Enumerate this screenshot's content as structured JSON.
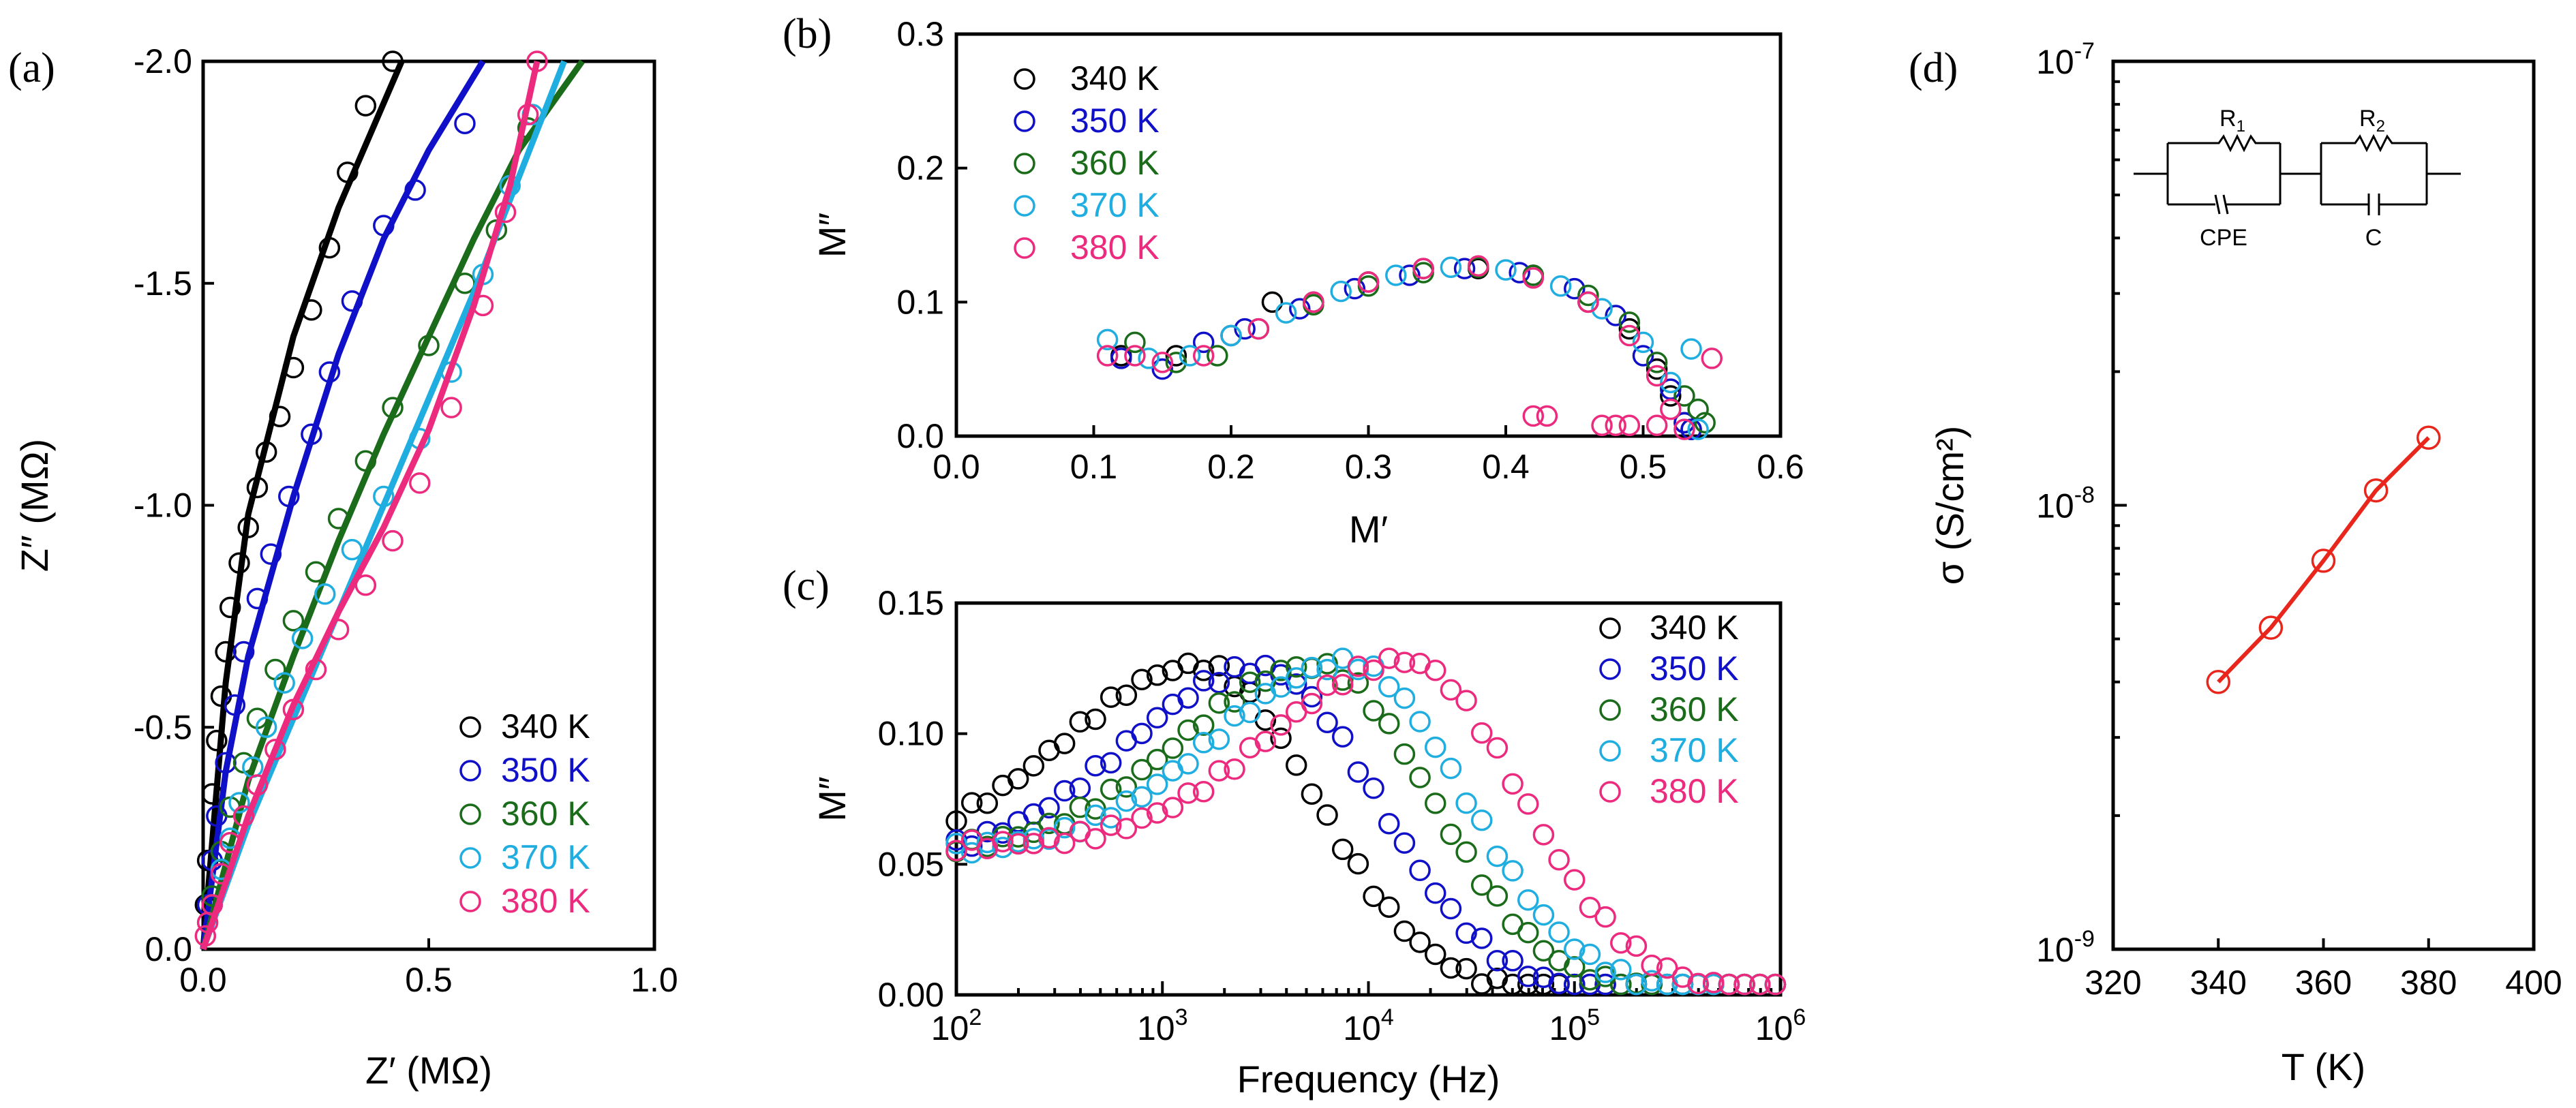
{
  "panels": {
    "a": {
      "label": "(a)"
    },
    "b": {
      "label": "(b)"
    },
    "c": {
      "label": "(c)"
    },
    "d": {
      "label": "(d)"
    }
  },
  "chart_data": [
    {
      "id": "a",
      "type": "scatter",
      "title": "",
      "xlabel": "Z′ (MΩ)",
      "ylabel": "Z″ (MΩ)",
      "xlim": [
        0,
        1.0
      ],
      "ylim": [
        0,
        -2.0
      ],
      "xticks": [
        "0.0",
        "0.5",
        "1.0"
      ],
      "yticks": [
        "0.0",
        "-0.5",
        "-1.0",
        "-1.5",
        "-2.0"
      ],
      "legend": "bottom-right",
      "series": [
        {
          "name": "340 K",
          "color": "#000000",
          "x": [
            0.005,
            0.01,
            0.02,
            0.03,
            0.04,
            0.05,
            0.06,
            0.08,
            0.1,
            0.12,
            0.14,
            0.17,
            0.2,
            0.24,
            0.28,
            0.32,
            0.36,
            0.42
          ],
          "y": [
            -0.1,
            -0.2,
            -0.35,
            -0.47,
            -0.57,
            -0.67,
            -0.77,
            -0.87,
            -0.95,
            -1.04,
            -1.12,
            -1.2,
            -1.31,
            -1.44,
            -1.58,
            -1.75,
            -1.9,
            -2.0
          ],
          "fit_x": [
            0,
            0.05,
            0.1,
            0.2,
            0.3,
            0.44
          ],
          "fit_y": [
            0,
            -0.6,
            -0.98,
            -1.38,
            -1.67,
            -2.0
          ]
        },
        {
          "name": "350 K",
          "color": "#1010c8",
          "x": [
            0.01,
            0.02,
            0.03,
            0.05,
            0.07,
            0.09,
            0.12,
            0.15,
            0.19,
            0.24,
            0.28,
            0.33,
            0.4,
            0.47,
            0.58
          ],
          "y": [
            -0.1,
            -0.2,
            -0.3,
            -0.42,
            -0.55,
            -0.67,
            -0.79,
            -0.89,
            -1.02,
            -1.16,
            -1.3,
            -1.46,
            -1.63,
            -1.71,
            -1.86
          ],
          "fit_x": [
            0,
            0.05,
            0.1,
            0.2,
            0.3,
            0.4,
            0.5,
            0.62
          ],
          "fit_y": [
            0,
            -0.4,
            -0.66,
            -1.02,
            -1.34,
            -1.6,
            -1.8,
            -2.0
          ]
        },
        {
          "name": "360 K",
          "color": "#1a6b1a",
          "x": [
            0.02,
            0.04,
            0.06,
            0.09,
            0.12,
            0.16,
            0.2,
            0.25,
            0.3,
            0.36,
            0.42,
            0.5,
            0.58,
            0.65,
            0.72
          ],
          "y": [
            -0.12,
            -0.22,
            -0.32,
            -0.42,
            -0.52,
            -0.63,
            -0.74,
            -0.85,
            -0.97,
            -1.1,
            -1.22,
            -1.36,
            -1.5,
            -1.62,
            -1.85
          ],
          "fit_x": [
            0,
            0.1,
            0.2,
            0.3,
            0.4,
            0.5,
            0.6,
            0.7,
            0.84
          ],
          "fit_y": [
            0,
            -0.38,
            -0.66,
            -0.92,
            -1.16,
            -1.38,
            -1.6,
            -1.8,
            -2.0
          ]
        },
        {
          "name": "370 K",
          "color": "#20aee0",
          "x": [
            0.02,
            0.04,
            0.06,
            0.08,
            0.11,
            0.14,
            0.18,
            0.22,
            0.27,
            0.33,
            0.4,
            0.48,
            0.55,
            0.62,
            0.68,
            0.73
          ],
          "y": [
            -0.1,
            -0.18,
            -0.25,
            -0.33,
            -0.41,
            -0.5,
            -0.6,
            -0.7,
            -0.8,
            -0.9,
            -1.02,
            -1.15,
            -1.3,
            -1.52,
            -1.72,
            -1.88
          ],
          "fit_x": [
            0,
            0.1,
            0.2,
            0.3,
            0.4,
            0.5,
            0.6,
            0.7,
            0.8
          ],
          "fit_y": [
            0,
            -0.28,
            -0.52,
            -0.76,
            -1.0,
            -1.24,
            -1.48,
            -1.74,
            -2.0
          ]
        },
        {
          "name": "380 K",
          "color": "#ec2a7e",
          "x": [
            0.005,
            0.01,
            0.02,
            0.04,
            0.06,
            0.09,
            0.12,
            0.16,
            0.2,
            0.25,
            0.3,
            0.36,
            0.42,
            0.48,
            0.55,
            0.62,
            0.67,
            0.72,
            0.74
          ],
          "y": [
            -0.03,
            -0.06,
            -0.1,
            -0.17,
            -0.24,
            -0.3,
            -0.37,
            -0.45,
            -0.54,
            -0.63,
            -0.72,
            -0.82,
            -0.92,
            -1.05,
            -1.22,
            -1.45,
            -1.66,
            -1.88,
            -2.0
          ],
          "fit_x": [
            0,
            0.1,
            0.2,
            0.3,
            0.4,
            0.5,
            0.6,
            0.68,
            0.74
          ],
          "fit_y": [
            0,
            -0.3,
            -0.55,
            -0.76,
            -0.95,
            -1.17,
            -1.45,
            -1.72,
            -2.0
          ]
        }
      ]
    },
    {
      "id": "b",
      "type": "scatter",
      "title": "",
      "xlabel": "M′",
      "ylabel": "M″",
      "xlim": [
        0,
        0.6
      ],
      "ylim": [
        0,
        0.3
      ],
      "xticks": [
        "0.0",
        "0.1",
        "0.2",
        "0.3",
        "0.4",
        "0.5",
        "0.6"
      ],
      "yticks": [
        "0.0",
        "0.1",
        "0.2",
        "0.3"
      ],
      "legend": "top-left",
      "series": [
        {
          "name": "340 K",
          "color": "#000000",
          "x": [
            0.12,
            0.16,
            0.2,
            0.23,
            0.26,
            0.3,
            0.34,
            0.38,
            0.42,
            0.46,
            0.49,
            0.51,
            0.52,
            0.53,
            0.535
          ],
          "y": [
            0.06,
            0.06,
            0.075,
            0.1,
            0.1,
            0.115,
            0.125,
            0.125,
            0.12,
            0.1,
            0.08,
            0.05,
            0.03,
            0.01,
            0.005
          ]
        },
        {
          "name": "350 K",
          "color": "#1010c8",
          "x": [
            0.12,
            0.15,
            0.18,
            0.21,
            0.25,
            0.29,
            0.33,
            0.37,
            0.41,
            0.45,
            0.48,
            0.5,
            0.52,
            0.53,
            0.535
          ],
          "y": [
            0.058,
            0.05,
            0.07,
            0.08,
            0.095,
            0.11,
            0.12,
            0.125,
            0.122,
            0.11,
            0.09,
            0.06,
            0.035,
            0.01,
            0.005
          ]
        },
        {
          "name": "360 K",
          "color": "#1a6b1a",
          "x": [
            0.13,
            0.16,
            0.19,
            0.22,
            0.26,
            0.3,
            0.34,
            0.38,
            0.42,
            0.46,
            0.49,
            0.51,
            0.53,
            0.54,
            0.545
          ],
          "y": [
            0.07,
            0.055,
            0.06,
            0.08,
            0.098,
            0.112,
            0.122,
            0.126,
            0.12,
            0.105,
            0.085,
            0.055,
            0.03,
            0.02,
            0.01
          ]
        },
        {
          "name": "370 K",
          "color": "#20aee0",
          "x": [
            0.11,
            0.14,
            0.17,
            0.2,
            0.24,
            0.28,
            0.32,
            0.36,
            0.4,
            0.44,
            0.47,
            0.5,
            0.52,
            0.535,
            0.54
          ],
          "y": [
            0.072,
            0.058,
            0.06,
            0.075,
            0.092,
            0.108,
            0.12,
            0.126,
            0.124,
            0.112,
            0.095,
            0.07,
            0.04,
            0.065,
            0.005
          ]
        },
        {
          "name": "380 K",
          "color": "#ec2a7e",
          "x": [
            0.11,
            0.13,
            0.15,
            0.18,
            0.22,
            0.26,
            0.3,
            0.34,
            0.38,
            0.42,
            0.46,
            0.49,
            0.51,
            0.52,
            0.53,
            0.55
          ],
          "y": [
            0.06,
            0.06,
            0.055,
            0.06,
            0.08,
            0.1,
            0.115,
            0.125,
            0.127,
            0.118,
            0.1,
            0.075,
            0.045,
            0.02,
            0.005,
            0.058
          ]
        },
        {
          "name": "",
          "color": "#ec2a7e",
          "x": [
            0.42,
            0.43,
            0.47,
            0.48,
            0.49,
            0.51
          ],
          "y": [
            0.015,
            0.015,
            0.008,
            0.008,
            0.008,
            0.008
          ]
        }
      ]
    },
    {
      "id": "c",
      "type": "scatter",
      "title": "",
      "xlabel": "Frequency (Hz)",
      "ylabel": "M″",
      "xscale": "log",
      "xlim": [
        100,
        1000000
      ],
      "ylim": [
        0,
        0.15
      ],
      "xticks": [
        "10",
        "10",
        "10",
        "10",
        "10"
      ],
      "xtick_exponents": [
        "2",
        "3",
        "4",
        "5",
        "6"
      ],
      "yticks": [
        "0.00",
        "0.05",
        "0.10",
        "0.15"
      ],
      "legend": "top-right",
      "series": [
        {
          "name": "340 K",
          "color": "#000000",
          "peak_f": 1500,
          "peak_m": 0.126,
          "base_m": 0.055
        },
        {
          "name": "350 K",
          "color": "#1010c8",
          "peak_f": 3000,
          "peak_m": 0.125,
          "base_m": 0.052
        },
        {
          "name": "360 K",
          "color": "#1a6b1a",
          "peak_f": 5500,
          "peak_m": 0.126,
          "base_m": 0.055
        },
        {
          "name": "370 K",
          "color": "#20aee0",
          "peak_f": 8000,
          "peak_m": 0.127,
          "base_m": 0.055
        },
        {
          "name": "380 K",
          "color": "#ec2a7e",
          "peak_f": 15000,
          "peak_m": 0.128,
          "base_m": 0.057
        }
      ]
    },
    {
      "id": "d",
      "type": "scatter",
      "title": "",
      "xlabel": "T (K)",
      "ylabel": "σ (S/cm²)",
      "yscale": "log",
      "xlim": [
        320,
        400
      ],
      "ylim": [
        1e-09,
        1e-07
      ],
      "xticks": [
        "320",
        "340",
        "360",
        "380",
        "400"
      ],
      "yticks": [
        "10",
        "10",
        "10"
      ],
      "ytick_exponents": [
        "-9",
        "-8",
        "-7"
      ],
      "color": "#e8261c",
      "x": [
        340,
        350,
        360,
        370,
        380
      ],
      "y": [
        4e-09,
        5.3e-09,
        7.5e-09,
        1.08e-08,
        1.42e-08
      ],
      "circuit": {
        "r1": "R",
        "r1_sub": "1",
        "r2": "R",
        "r2_sub": "2",
        "cpe": "CPE",
        "c": "C"
      }
    }
  ]
}
